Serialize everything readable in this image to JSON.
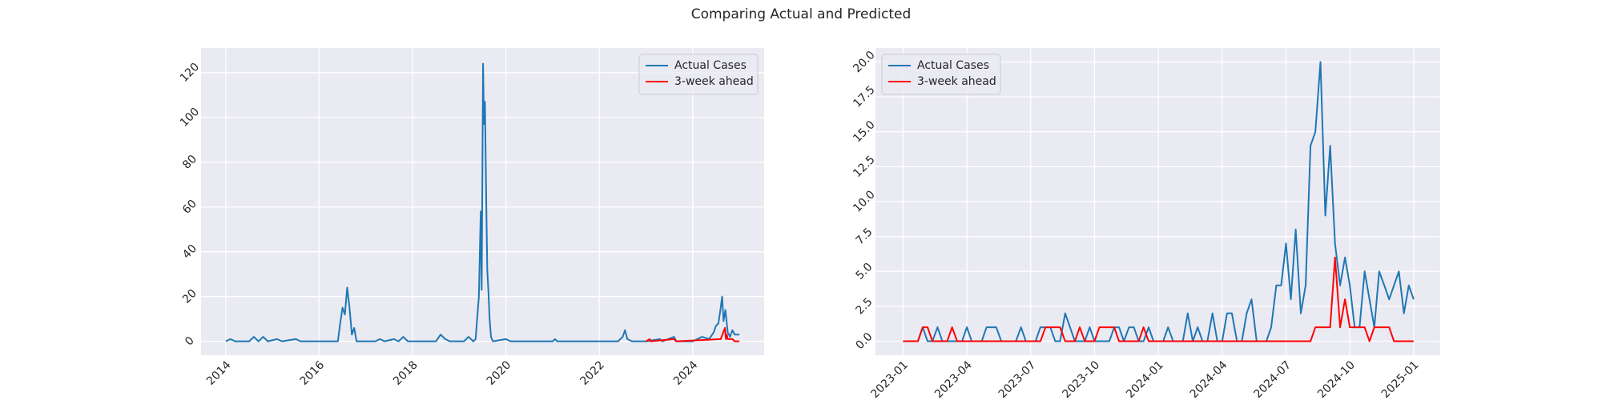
{
  "title": "Comparing Actual and Predicted",
  "chart_data": [
    {
      "type": "line",
      "grid": true,
      "legend": "upper right",
      "xlim": [
        2013.47,
        2025.53
      ],
      "ylim": [
        -6.2,
        131
      ],
      "xticks": [
        2014,
        2016,
        2018,
        2020,
        2022,
        2024
      ],
      "yticks": [
        0,
        20,
        40,
        60,
        80,
        100,
        120
      ],
      "series": [
        {
          "name": "Actual Cases",
          "color": "#1f77b4",
          "x": [
            2014.0,
            2014.1,
            2014.2,
            2014.5,
            2014.6,
            2014.7,
            2014.8,
            2014.9,
            2015.1,
            2015.2,
            2015.5,
            2015.6,
            2016.0,
            2016.4,
            2016.45,
            2016.5,
            2016.55,
            2016.6,
            2016.65,
            2016.7,
            2016.75,
            2016.8,
            2017.2,
            2017.3,
            2017.4,
            2017.6,
            2017.7,
            2017.8,
            2017.9,
            2018.5,
            2018.6,
            2018.7,
            2018.8,
            2019.1,
            2019.2,
            2019.3,
            2019.35,
            2019.42,
            2019.46,
            2019.48,
            2019.51,
            2019.53,
            2019.55,
            2019.58,
            2019.6,
            2019.63,
            2019.65,
            2019.68,
            2019.72,
            2020.0,
            2020.1,
            2021.0,
            2021.05,
            2021.1,
            2022.4,
            2022.5,
            2022.55,
            2022.6,
            2022.7,
            2023.0,
            2023.3,
            2023.35,
            2023.6,
            2023.65,
            2024.0,
            2024.2,
            2024.35,
            2024.45,
            2024.5,
            2024.55,
            2024.6,
            2024.63,
            2024.66,
            2024.7,
            2024.75,
            2024.8,
            2024.85,
            2024.9,
            2025.0
          ],
          "values": [
            0,
            1,
            0,
            0,
            2,
            0,
            2,
            0,
            1,
            0,
            1,
            0,
            0,
            0,
            8,
            15,
            12,
            24,
            15,
            3,
            6,
            0,
            0,
            1,
            0,
            1,
            0,
            2,
            0,
            0,
            3,
            1,
            0,
            0,
            2,
            0,
            1,
            20,
            58,
            23,
            124,
            97,
            107,
            60,
            32,
            20,
            10,
            2,
            0,
            1,
            0,
            0,
            1,
            0,
            0,
            2,
            5,
            1,
            0,
            0,
            1,
            0,
            2,
            0,
            0,
            2,
            1,
            4,
            7,
            8,
            15,
            20,
            9,
            14,
            4,
            2,
            5,
            3,
            3
          ]
        },
        {
          "name": "3-week ahead",
          "color": "#ff0000",
          "x": [
            2023.0,
            2023.08,
            2023.1,
            2023.6,
            2023.65,
            2024.6,
            2024.69,
            2024.71,
            2024.73,
            2024.75,
            2024.85,
            2024.9,
            2025.0
          ],
          "values": [
            0,
            1,
            0,
            1,
            0,
            1,
            6,
            1,
            3,
            1,
            1,
            0,
            0
          ]
        }
      ]
    },
    {
      "type": "line",
      "grid": true,
      "legend": "upper left",
      "xlim": [
        2022.892,
        2025.104
      ],
      "ylim": [
        -1,
        21
      ],
      "xticks": [
        {
          "value": 2023.0,
          "label": "2023-01"
        },
        {
          "value": 2023.25,
          "label": "2023-04"
        },
        {
          "value": 2023.5,
          "label": "2023-07"
        },
        {
          "value": 2023.75,
          "label": "2023-10"
        },
        {
          "value": 2024.0,
          "label": "2024-01"
        },
        {
          "value": 2024.25,
          "label": "2024-04"
        },
        {
          "value": 2024.5,
          "label": "2024-07"
        },
        {
          "value": 2024.75,
          "label": "2024-10"
        },
        {
          "value": 2025.0,
          "label": "2025-01"
        }
      ],
      "yticks": [
        {
          "value": 0,
          "label": "0.0"
        },
        {
          "value": 2.5,
          "label": "2.5"
        },
        {
          "value": 5,
          "label": "5.0"
        },
        {
          "value": 7.5,
          "label": "7.5"
        },
        {
          "value": 10,
          "label": "10.0"
        },
        {
          "value": 12.5,
          "label": "12.5"
        },
        {
          "value": 15,
          "label": "15.0"
        },
        {
          "value": 17.5,
          "label": "17.5"
        },
        {
          "value": 20,
          "label": "20.0"
        }
      ],
      "series": [
        {
          "name": "Actual Cases",
          "color": "#1f77b4",
          "x": [
            2023.0,
            2023.019,
            2023.038,
            2023.058,
            2023.077,
            2023.096,
            2023.115,
            2023.135,
            2023.154,
            2023.173,
            2023.192,
            2023.212,
            2023.231,
            2023.25,
            2023.269,
            2023.288,
            2023.308,
            2023.327,
            2023.346,
            2023.365,
            2023.385,
            2023.404,
            2023.423,
            2023.442,
            2023.462,
            2023.481,
            2023.5,
            2023.519,
            2023.538,
            2023.558,
            2023.577,
            2023.596,
            2023.615,
            2023.635,
            2023.654,
            2023.673,
            2023.692,
            2023.712,
            2023.731,
            2023.75,
            2023.769,
            2023.788,
            2023.808,
            2023.827,
            2023.846,
            2023.865,
            2023.885,
            2023.904,
            2023.923,
            2023.942,
            2023.962,
            2023.981,
            2024.0,
            2024.019,
            2024.038,
            2024.058,
            2024.077,
            2024.096,
            2024.115,
            2024.135,
            2024.154,
            2024.173,
            2024.192,
            2024.212,
            2024.231,
            2024.25,
            2024.269,
            2024.288,
            2024.308,
            2024.327,
            2024.346,
            2024.365,
            2024.385,
            2024.404,
            2024.423,
            2024.442,
            2024.462,
            2024.481,
            2024.5,
            2024.519,
            2024.538,
            2024.558,
            2024.577,
            2024.596,
            2024.615,
            2024.635,
            2024.654,
            2024.673,
            2024.692,
            2024.712,
            2024.731,
            2024.75,
            2024.769,
            2024.788,
            2024.808,
            2024.827,
            2024.846,
            2024.865,
            2024.885,
            2024.904,
            2024.923,
            2024.942,
            2024.962,
            2024.981,
            2025.0
          ],
          "values": [
            0,
            0,
            0,
            0,
            1,
            0,
            0,
            1,
            0,
            0,
            0,
            0,
            0,
            1,
            0,
            0,
            0,
            1,
            1,
            1,
            0,
            0,
            0,
            0,
            1,
            0,
            0,
            0,
            1,
            1,
            1,
            0,
            0,
            2,
            1,
            0,
            0,
            0,
            1,
            0,
            0,
            0,
            0,
            1,
            1,
            0,
            1,
            1,
            0,
            0,
            1,
            0,
            0,
            0,
            1,
            0,
            0,
            0,
            2,
            0,
            1,
            0,
            0,
            2,
            0,
            0,
            2,
            2,
            0,
            0,
            2,
            3,
            0,
            0,
            0,
            1,
            4,
            4,
            7,
            3,
            8,
            2,
            4,
            14,
            15,
            20,
            9,
            14,
            7,
            4,
            6,
            4,
            1,
            1,
            5,
            3,
            1,
            5,
            4,
            3,
            4,
            5,
            2,
            4,
            3
          ]
        },
        {
          "name": "3-week ahead",
          "color": "#ff0000",
          "x": [
            2023.0,
            2023.019,
            2023.038,
            2023.058,
            2023.077,
            2023.096,
            2023.115,
            2023.135,
            2023.154,
            2023.173,
            2023.192,
            2023.212,
            2023.231,
            2023.25,
            2023.269,
            2023.288,
            2023.308,
            2023.327,
            2023.346,
            2023.365,
            2023.385,
            2023.404,
            2023.423,
            2023.442,
            2023.462,
            2023.481,
            2023.5,
            2023.519,
            2023.538,
            2023.558,
            2023.577,
            2023.596,
            2023.615,
            2023.635,
            2023.654,
            2023.673,
            2023.692,
            2023.712,
            2023.731,
            2023.75,
            2023.769,
            2023.788,
            2023.808,
            2023.827,
            2023.846,
            2023.865,
            2023.885,
            2023.904,
            2023.923,
            2023.942,
            2023.962,
            2023.981,
            2024.0,
            2024.019,
            2024.038,
            2024.058,
            2024.077,
            2024.096,
            2024.115,
            2024.135,
            2024.154,
            2024.173,
            2024.192,
            2024.212,
            2024.231,
            2024.25,
            2024.269,
            2024.288,
            2024.308,
            2024.327,
            2024.346,
            2024.365,
            2024.385,
            2024.404,
            2024.423,
            2024.442,
            2024.462,
            2024.481,
            2024.5,
            2024.519,
            2024.538,
            2024.558,
            2024.577,
            2024.596,
            2024.615,
            2024.635,
            2024.654,
            2024.673,
            2024.692,
            2024.712,
            2024.731,
            2024.75,
            2024.769,
            2024.788,
            2024.808,
            2024.827,
            2024.846,
            2024.865,
            2024.885,
            2024.904,
            2024.923,
            2024.942,
            2024.962,
            2024.981,
            2025.0
          ],
          "values": [
            0,
            0,
            0,
            0,
            1,
            1,
            0,
            0,
            0,
            0,
            1,
            0,
            0,
            0,
            0,
            0,
            0,
            0,
            0,
            0,
            0,
            0,
            0,
            0,
            0,
            0,
            0,
            0,
            0,
            1,
            1,
            1,
            1,
            0,
            0,
            0,
            1,
            0,
            0,
            0,
            1,
            1,
            1,
            1,
            0,
            0,
            0,
            0,
            0,
            1,
            0,
            0,
            0,
            0,
            0,
            0,
            0,
            0,
            0,
            0,
            0,
            0,
            0,
            0,
            0,
            0,
            0,
            0,
            0,
            0,
            0,
            0,
            0,
            0,
            0,
            0,
            0,
            0,
            0,
            0,
            0,
            0,
            0,
            0,
            1,
            1,
            1,
            1,
            6,
            1,
            3,
            1,
            1,
            1,
            1,
            0,
            1,
            1,
            1,
            1,
            0,
            0,
            0,
            0,
            0
          ]
        }
      ]
    }
  ]
}
